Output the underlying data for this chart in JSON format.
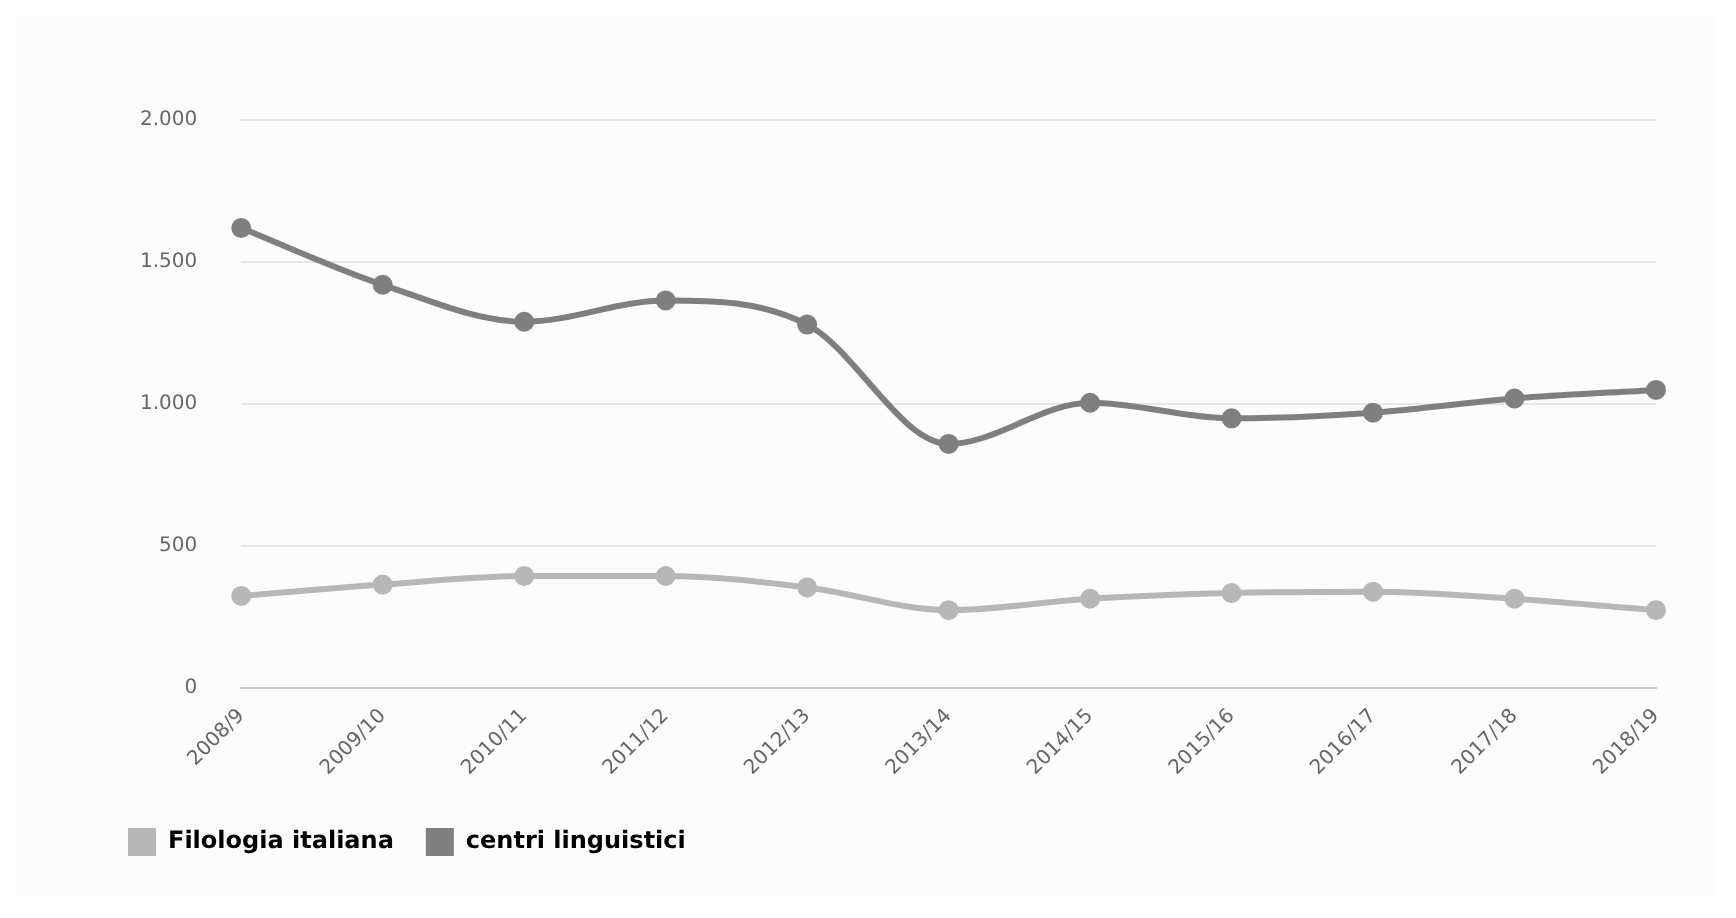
{
  "chart_data": {
    "type": "line",
    "categories": [
      "2008/9",
      "2009/10",
      "2010/11",
      "2011/12",
      "2012/13",
      "2013/14",
      "2014/15",
      "2015/16",
      "2016/17",
      "2017/18",
      "2018/19"
    ],
    "series": [
      {
        "name": "Filologia italiana",
        "color": "#b7b7b7",
        "values": [
          325,
          365,
          395,
          395,
          355,
          275,
          315,
          335,
          340,
          315,
          275
        ]
      },
      {
        "name": "centri linguistici",
        "color": "#7f7f7f",
        "values": [
          1620,
          1420,
          1290,
          1365,
          1280,
          860,
          1005,
          950,
          970,
          1020,
          1050
        ]
      }
    ],
    "ylim": [
      0,
      2000
    ],
    "yticks": [
      0,
      {
        "value": 500,
        "label": "500"
      },
      {
        "value": 1000,
        "label": "1.000"
      },
      {
        "value": 1500,
        "label": "1.500"
      },
      {
        "value": 2000,
        "label": "2.000"
      }
    ],
    "grid": "y",
    "legend": "bottom left",
    "marker": "circle",
    "line_style": "solid"
  }
}
